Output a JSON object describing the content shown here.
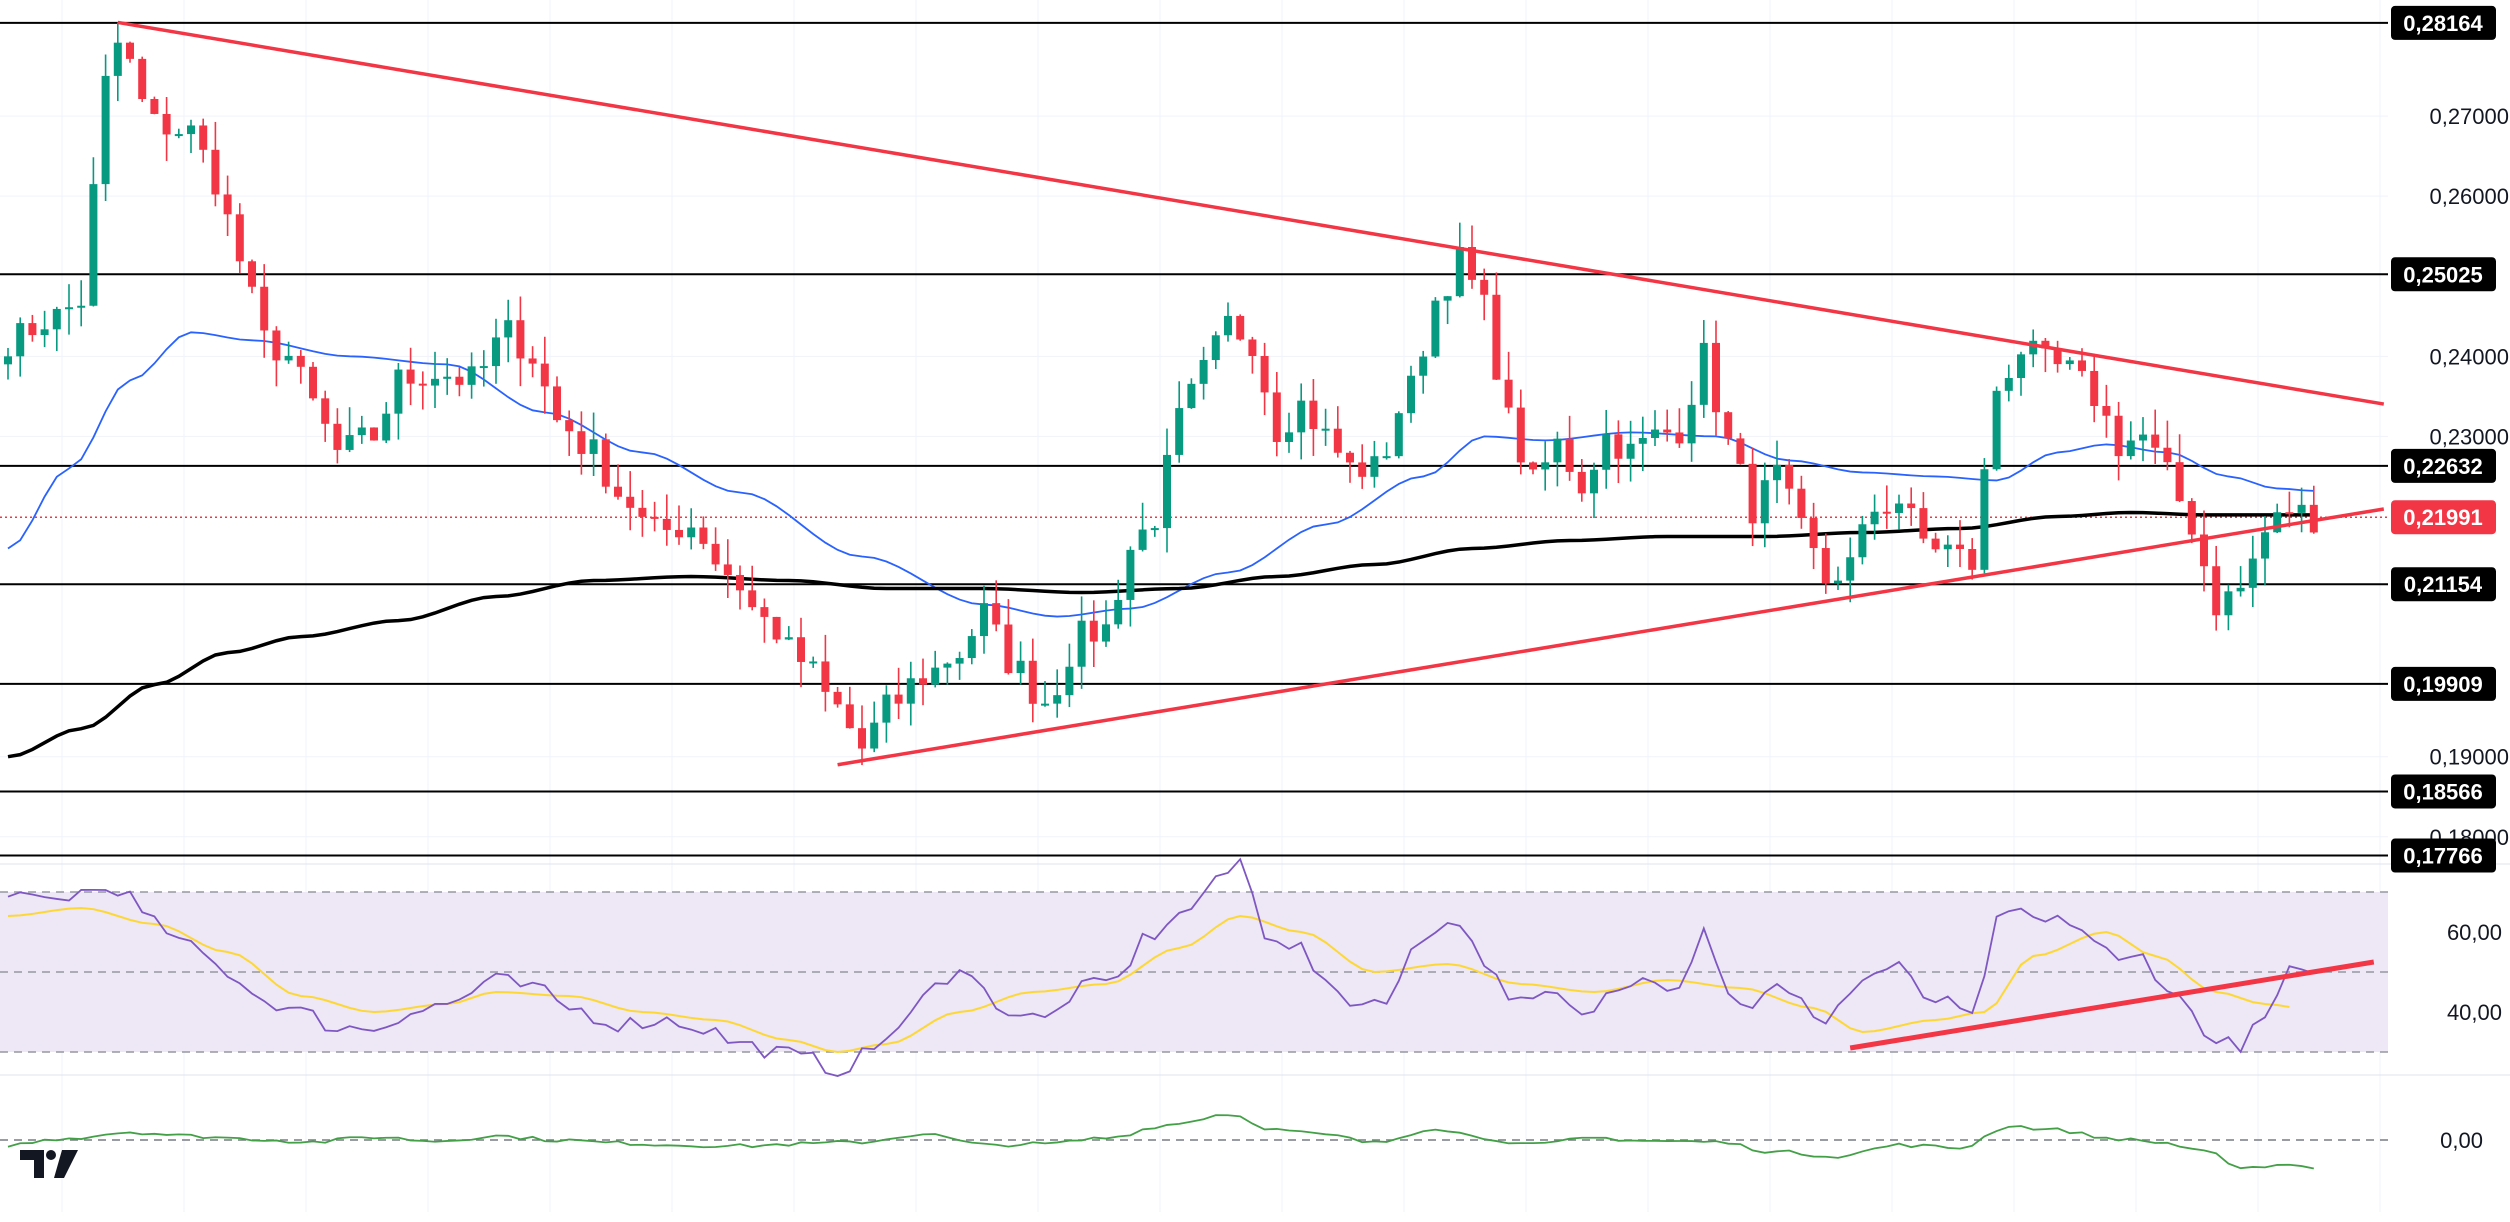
{
  "colors": {
    "up": "#089981",
    "down": "#f23645",
    "ma_fast": "#2962ff",
    "ma_slow": "#000000",
    "trend": "#f23645",
    "rsi_line": "#7e57c2",
    "rsi_ma": "#fdd835",
    "rsi_band": "#ede7f6",
    "momentum": "#43a047",
    "level": "#000000",
    "badge_level": "#000000",
    "badge_price": "#f23645"
  },
  "chart_data": [
    {
      "type": "candlestick",
      "title": "",
      "y_axis_ticks": [
        "0,27000",
        "0,26000",
        "0,24000",
        "0,23000",
        "0,19000",
        "0,18000"
      ],
      "ylim": [
        0.1776,
        0.2845
      ],
      "x_bars": 190,
      "grid": true,
      "horizontal_levels": [
        {
          "label": "0,28164",
          "value": 0.28164
        },
        {
          "label": "0,25025",
          "value": 0.25025
        },
        {
          "label": "0,22632",
          "value": 0.22632
        },
        {
          "label": "0,21154",
          "value": 0.21154
        },
        {
          "label": "0,19909",
          "value": 0.19909
        },
        {
          "label": "0,18566",
          "value": 0.18566
        },
        {
          "label": "0,17766",
          "value": 0.17766
        }
      ],
      "current_price": {
        "label": "0,21991",
        "value": 0.21991
      },
      "close_anchors": [
        [
          0,
          0.242
        ],
        [
          4,
          0.245
        ],
        [
          6,
          0.247
        ],
        [
          8,
          0.274
        ],
        [
          9,
          0.279
        ],
        [
          12,
          0.269
        ],
        [
          15,
          0.268
        ],
        [
          17,
          0.262
        ],
        [
          19,
          0.252
        ],
        [
          21,
          0.242
        ],
        [
          23,
          0.24
        ],
        [
          25,
          0.234
        ],
        [
          27,
          0.228
        ],
        [
          30,
          0.23
        ],
        [
          32,
          0.237
        ],
        [
          35,
          0.238
        ],
        [
          38,
          0.237
        ],
        [
          41,
          0.243
        ],
        [
          43,
          0.24
        ],
        [
          45,
          0.232
        ],
        [
          48,
          0.228
        ],
        [
          50,
          0.223
        ],
        [
          53,
          0.218
        ],
        [
          56,
          0.219
        ],
        [
          59,
          0.213
        ],
        [
          62,
          0.207
        ],
        [
          65,
          0.202
        ],
        [
          68,
          0.196
        ],
        [
          70,
          0.191
        ],
        [
          72,
          0.196
        ],
        [
          75,
          0.2
        ],
        [
          78,
          0.203
        ],
        [
          80,
          0.208
        ],
        [
          82,
          0.202
        ],
        [
          85,
          0.197
        ],
        [
          88,
          0.205
        ],
        [
          90,
          0.206
        ],
        [
          92,
          0.216
        ],
        [
          94,
          0.22
        ],
        [
          96,
          0.232
        ],
        [
          98,
          0.238
        ],
        [
          100,
          0.244
        ],
        [
          102,
          0.242
        ],
        [
          104,
          0.231
        ],
        [
          106,
          0.234
        ],
        [
          108,
          0.23
        ],
        [
          110,
          0.226
        ],
        [
          112,
          0.226
        ],
        [
          115,
          0.236
        ],
        [
          117,
          0.247
        ],
        [
          119,
          0.252
        ],
        [
          121,
          0.246
        ],
        [
          123,
          0.232
        ],
        [
          125,
          0.224
        ],
        [
          127,
          0.229
        ],
        [
          129,
          0.224
        ],
        [
          131,
          0.23
        ],
        [
          133,
          0.228
        ],
        [
          135,
          0.23
        ],
        [
          137,
          0.231
        ],
        [
          139,
          0.24
        ],
        [
          141,
          0.229
        ],
        [
          143,
          0.221
        ],
        [
          145,
          0.225
        ],
        [
          147,
          0.218
        ],
        [
          149,
          0.212
        ],
        [
          151,
          0.214
        ],
        [
          153,
          0.221
        ],
        [
          155,
          0.222
        ],
        [
          157,
          0.217
        ],
        [
          159,
          0.216
        ],
        [
          161,
          0.214
        ],
        [
          163,
          0.236
        ],
        [
          165,
          0.241
        ],
        [
          167,
          0.239
        ],
        [
          169,
          0.238
        ],
        [
          171,
          0.235
        ],
        [
          173,
          0.229
        ],
        [
          175,
          0.23
        ],
        [
          177,
          0.225
        ],
        [
          179,
          0.219
        ],
        [
          181,
          0.209
        ],
        [
          183,
          0.211
        ],
        [
          185,
          0.218
        ],
        [
          187,
          0.221
        ],
        [
          189,
          0.2199
        ]
      ],
      "ma_fast_anchors": [
        [
          0,
          0.216
        ],
        [
          5,
          0.226
        ],
        [
          10,
          0.237
        ],
        [
          15,
          0.243
        ],
        [
          20,
          0.242
        ],
        [
          28,
          0.24
        ],
        [
          36,
          0.239
        ],
        [
          44,
          0.233
        ],
        [
          52,
          0.228
        ],
        [
          60,
          0.223
        ],
        [
          70,
          0.215
        ],
        [
          80,
          0.209
        ],
        [
          86,
          0.2075
        ],
        [
          92,
          0.2085
        ],
        [
          100,
          0.213
        ],
        [
          108,
          0.219
        ],
        [
          116,
          0.225
        ],
        [
          121,
          0.23
        ],
        [
          126,
          0.2295
        ],
        [
          133,
          0.2305
        ],
        [
          140,
          0.23
        ],
        [
          146,
          0.227
        ],
        [
          152,
          0.2255
        ],
        [
          158,
          0.225
        ],
        [
          163,
          0.2245
        ],
        [
          168,
          0.228
        ],
        [
          172,
          0.229
        ],
        [
          177,
          0.228
        ],
        [
          182,
          0.225
        ],
        [
          186,
          0.2235
        ],
        [
          189,
          0.2232
        ]
      ],
      "ma_slow_anchors": [
        [
          0,
          0.19
        ],
        [
          6,
          0.1935
        ],
        [
          12,
          0.199
        ],
        [
          18,
          0.203
        ],
        [
          24,
          0.205
        ],
        [
          32,
          0.207
        ],
        [
          40,
          0.21
        ],
        [
          48,
          0.212
        ],
        [
          56,
          0.2125
        ],
        [
          64,
          0.212
        ],
        [
          72,
          0.211
        ],
        [
          80,
          0.211
        ],
        [
          88,
          0.2105
        ],
        [
          96,
          0.211
        ],
        [
          104,
          0.2125
        ],
        [
          112,
          0.214
        ],
        [
          120,
          0.216
        ],
        [
          128,
          0.217
        ],
        [
          136,
          0.2175
        ],
        [
          144,
          0.2175
        ],
        [
          152,
          0.218
        ],
        [
          160,
          0.2185
        ],
        [
          168,
          0.22
        ],
        [
          174,
          0.2205
        ],
        [
          180,
          0.2202
        ],
        [
          189,
          0.2202
        ]
      ],
      "trend_lines": [
        {
          "name": "upper",
          "from": [
            9,
            0.2817
          ],
          "to": [
            189,
            0.2355
          ]
        },
        {
          "name": "lower",
          "from": [
            68,
            0.189
          ],
          "to": [
            189,
            0.2195
          ]
        }
      ]
    },
    {
      "type": "line",
      "name": "rsi",
      "y_axis_ticks": [
        "60,00",
        "40,00"
      ],
      "ylim": [
        25,
        75
      ],
      "band": [
        30,
        70
      ],
      "midline": 50,
      "rsi_anchors": [
        [
          0,
          68
        ],
        [
          4,
          68
        ],
        [
          6,
          70
        ],
        [
          9,
          71
        ],
        [
          12,
          62
        ],
        [
          15,
          56
        ],
        [
          18,
          50
        ],
        [
          21,
          43
        ],
        [
          24,
          40
        ],
        [
          27,
          36
        ],
        [
          30,
          36
        ],
        [
          33,
          40
        ],
        [
          36,
          42
        ],
        [
          40,
          48
        ],
        [
          43,
          46
        ],
        [
          46,
          41
        ],
        [
          50,
          37
        ],
        [
          54,
          38
        ],
        [
          57,
          36
        ],
        [
          60,
          32
        ],
        [
          63,
          30
        ],
        [
          66,
          28
        ],
        [
          68,
          25
        ],
        [
          70,
          29
        ],
        [
          73,
          36
        ],
        [
          76,
          46
        ],
        [
          78,
          52
        ],
        [
          80,
          45
        ],
        [
          82,
          40
        ],
        [
          85,
          38
        ],
        [
          88,
          46
        ],
        [
          91,
          48
        ],
        [
          93,
          58
        ],
        [
          96,
          64
        ],
        [
          99,
          72
        ],
        [
          101,
          78
        ],
        [
          103,
          60
        ],
        [
          106,
          56
        ],
        [
          108,
          46
        ],
        [
          111,
          42
        ],
        [
          113,
          44
        ],
        [
          116,
          58
        ],
        [
          118,
          64
        ],
        [
          120,
          58
        ],
        [
          122,
          48
        ],
        [
          124,
          42
        ],
        [
          127,
          44
        ],
        [
          129,
          38
        ],
        [
          131,
          44
        ],
        [
          134,
          50
        ],
        [
          137,
          46
        ],
        [
          139,
          62
        ],
        [
          141,
          44
        ],
        [
          143,
          42
        ],
        [
          145,
          46
        ],
        [
          147,
          42
        ],
        [
          149,
          38
        ],
        [
          151,
          45
        ],
        [
          153,
          50
        ],
        [
          155,
          51
        ],
        [
          157,
          44
        ],
        [
          159,
          42
        ],
        [
          161,
          38
        ],
        [
          163,
          62
        ],
        [
          165,
          65
        ],
        [
          167,
          62
        ],
        [
          169,
          63
        ],
        [
          171,
          58
        ],
        [
          173,
          52
        ],
        [
          175,
          54
        ],
        [
          177,
          46
        ],
        [
          179,
          40
        ],
        [
          181,
          32
        ],
        [
          183,
          32
        ],
        [
          185,
          38
        ],
        [
          187,
          50
        ],
        [
          189,
          48
        ]
      ],
      "rsi_ma_anchors": [
        [
          0,
          64
        ],
        [
          6,
          66
        ],
        [
          12,
          62
        ],
        [
          18,
          55
        ],
        [
          24,
          44
        ],
        [
          30,
          40
        ],
        [
          36,
          42
        ],
        [
          40,
          45
        ],
        [
          46,
          44
        ],
        [
          52,
          40
        ],
        [
          58,
          38
        ],
        [
          64,
          33
        ],
        [
          68,
          30
        ],
        [
          72,
          32
        ],
        [
          78,
          40
        ],
        [
          84,
          45
        ],
        [
          90,
          47
        ],
        [
          96,
          56
        ],
        [
          101,
          64
        ],
        [
          106,
          60
        ],
        [
          112,
          50
        ],
        [
          118,
          52
        ],
        [
          124,
          47
        ],
        [
          130,
          45
        ],
        [
          136,
          48
        ],
        [
          142,
          46
        ],
        [
          148,
          41
        ],
        [
          152,
          35
        ],
        [
          158,
          38
        ],
        [
          162,
          40
        ],
        [
          166,
          54
        ],
        [
          172,
          60
        ],
        [
          176,
          54
        ],
        [
          181,
          45
        ],
        [
          185,
          42
        ],
        [
          188,
          41
        ]
      ],
      "trend_lines": [
        {
          "name": "rsi-support",
          "from": [
            151,
            31
          ],
          "to": [
            189,
            51
          ]
        }
      ]
    },
    {
      "type": "line",
      "name": "momentum",
      "y_axis_ticks": [
        "0,00"
      ],
      "ylim": [
        -0.6,
        0.6
      ],
      "zero_line": 0,
      "momentum_anchors": [
        [
          0,
          -0.05
        ],
        [
          5,
          0.02
        ],
        [
          10,
          0.08
        ],
        [
          15,
          0.04
        ],
        [
          20,
          0.01
        ],
        [
          25,
          -0.02
        ],
        [
          30,
          0.03
        ],
        [
          35,
          -0.01
        ],
        [
          40,
          0.04
        ],
        [
          45,
          0.0
        ],
        [
          50,
          -0.03
        ],
        [
          55,
          -0.05
        ],
        [
          60,
          -0.06
        ],
        [
          65,
          -0.04
        ],
        [
          70,
          -0.02
        ],
        [
          75,
          0.06
        ],
        [
          80,
          -0.05
        ],
        [
          85,
          -0.04
        ],
        [
          90,
          0.02
        ],
        [
          95,
          0.15
        ],
        [
          100,
          0.26
        ],
        [
          104,
          0.1
        ],
        [
          108,
          0.05
        ],
        [
          112,
          -0.03
        ],
        [
          117,
          0.12
        ],
        [
          121,
          0.02
        ],
        [
          125,
          -0.05
        ],
        [
          130,
          0.02
        ],
        [
          135,
          -0.01
        ],
        [
          140,
          -0.02
        ],
        [
          145,
          -0.12
        ],
        [
          150,
          -0.16
        ],
        [
          155,
          -0.05
        ],
        [
          160,
          -0.08
        ],
        [
          164,
          0.14
        ],
        [
          168,
          0.1
        ],
        [
          172,
          0.02
        ],
        [
          176,
          -0.02
        ],
        [
          180,
          -0.1
        ],
        [
          183,
          -0.3
        ],
        [
          186,
          -0.24
        ],
        [
          189,
          -0.27
        ]
      ]
    }
  ]
}
